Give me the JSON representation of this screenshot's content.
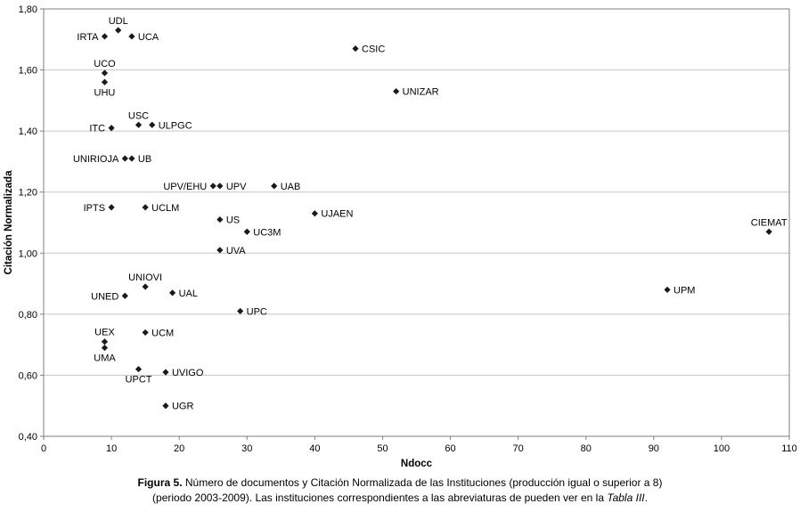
{
  "colors": {
    "marker": "#1a1a1a",
    "grid": "#c6c6c6",
    "border": "#7f7f7f",
    "text": "#000000"
  },
  "caption": {
    "label": "Figura 5.",
    "line1": " Número de documentos y Citación Normalizada de las Instituciones (producción igual o superior a 8)",
    "line2_pre": "(periodo 2003-2009). Las instituciones correspondientes a las abreviaturas de pueden ver en la ",
    "table_ref": "Tabla III",
    "line2_post": "."
  },
  "chart_data": {
    "type": "scatter",
    "title": "",
    "xlabel": "Ndocc",
    "ylabel": "Citación  Normalizada",
    "xlim": [
      0,
      110
    ],
    "ylim": [
      0.4,
      1.8
    ],
    "x_ticks": [
      0,
      10,
      20,
      30,
      40,
      50,
      60,
      70,
      80,
      90,
      100,
      110
    ],
    "y_ticks": [
      0.4,
      0.6,
      0.8,
      1.0,
      1.2,
      1.4,
      1.6,
      1.8
    ],
    "y_tick_labels": [
      "0,40",
      "0,60",
      "0,80",
      "1,00",
      "1,20",
      "1,40",
      "1,60",
      "1,80"
    ],
    "grid": "horizontal",
    "legend": "none",
    "marker": "diamond",
    "points": [
      {
        "label": "UDL",
        "x": 11,
        "y": 1.73,
        "label_pos": "above"
      },
      {
        "label": "IRTA",
        "x": 9,
        "y": 1.71,
        "label_pos": "left"
      },
      {
        "label": "UCA",
        "x": 13,
        "y": 1.71,
        "label_pos": "right"
      },
      {
        "label": "CSIC",
        "x": 46,
        "y": 1.67,
        "label_pos": "right"
      },
      {
        "label": "UCO",
        "x": 9,
        "y": 1.59,
        "label_pos": "above"
      },
      {
        "label": "UHU",
        "x": 9,
        "y": 1.56,
        "label_pos": "below"
      },
      {
        "label": "UNIZAR",
        "x": 52,
        "y": 1.53,
        "label_pos": "right"
      },
      {
        "label": "USC",
        "x": 14,
        "y": 1.42,
        "label_pos": "above"
      },
      {
        "label": "ULPGC",
        "x": 16,
        "y": 1.42,
        "label_pos": "right"
      },
      {
        "label": "ITC",
        "x": 10,
        "y": 1.41,
        "label_pos": "left"
      },
      {
        "label": "UNIRIOJA",
        "x": 12,
        "y": 1.31,
        "label_pos": "left"
      },
      {
        "label": "UB",
        "x": 13,
        "y": 1.31,
        "label_pos": "right"
      },
      {
        "label": "UPV/EHU",
        "x": 25,
        "y": 1.22,
        "label_pos": "left"
      },
      {
        "label": "UPV",
        "x": 26,
        "y": 1.22,
        "label_pos": "right"
      },
      {
        "label": "UAB",
        "x": 34,
        "y": 1.22,
        "label_pos": "right"
      },
      {
        "label": "IPTS",
        "x": 10,
        "y": 1.15,
        "label_pos": "left"
      },
      {
        "label": "UCLM",
        "x": 15,
        "y": 1.15,
        "label_pos": "right"
      },
      {
        "label": "UJAEN",
        "x": 40,
        "y": 1.13,
        "label_pos": "right"
      },
      {
        "label": "US",
        "x": 26,
        "y": 1.11,
        "label_pos": "right"
      },
      {
        "label": "CIEMAT",
        "x": 107,
        "y": 1.07,
        "label_pos": "above"
      },
      {
        "label": "UC3M",
        "x": 30,
        "y": 1.07,
        "label_pos": "right"
      },
      {
        "label": "UVA",
        "x": 26,
        "y": 1.01,
        "label_pos": "right"
      },
      {
        "label": "UNIOVI",
        "x": 15,
        "y": 0.89,
        "label_pos": "above"
      },
      {
        "label": "UPM",
        "x": 92,
        "y": 0.88,
        "label_pos": "right"
      },
      {
        "label": "UAL",
        "x": 19,
        "y": 0.87,
        "label_pos": "right"
      },
      {
        "label": "UNED",
        "x": 12,
        "y": 0.86,
        "label_pos": "left"
      },
      {
        "label": "UPC",
        "x": 29,
        "y": 0.81,
        "label_pos": "right"
      },
      {
        "label": "UCM",
        "x": 15,
        "y": 0.74,
        "label_pos": "right"
      },
      {
        "label": "UEX",
        "x": 9,
        "y": 0.71,
        "label_pos": "above"
      },
      {
        "label": "UMA",
        "x": 9,
        "y": 0.69,
        "label_pos": "below"
      },
      {
        "label": "UPCT",
        "x": 14,
        "y": 0.62,
        "label_pos": "below"
      },
      {
        "label": "UVIGO",
        "x": 18,
        "y": 0.61,
        "label_pos": "right"
      },
      {
        "label": "UGR",
        "x": 18,
        "y": 0.5,
        "label_pos": "right"
      }
    ]
  }
}
